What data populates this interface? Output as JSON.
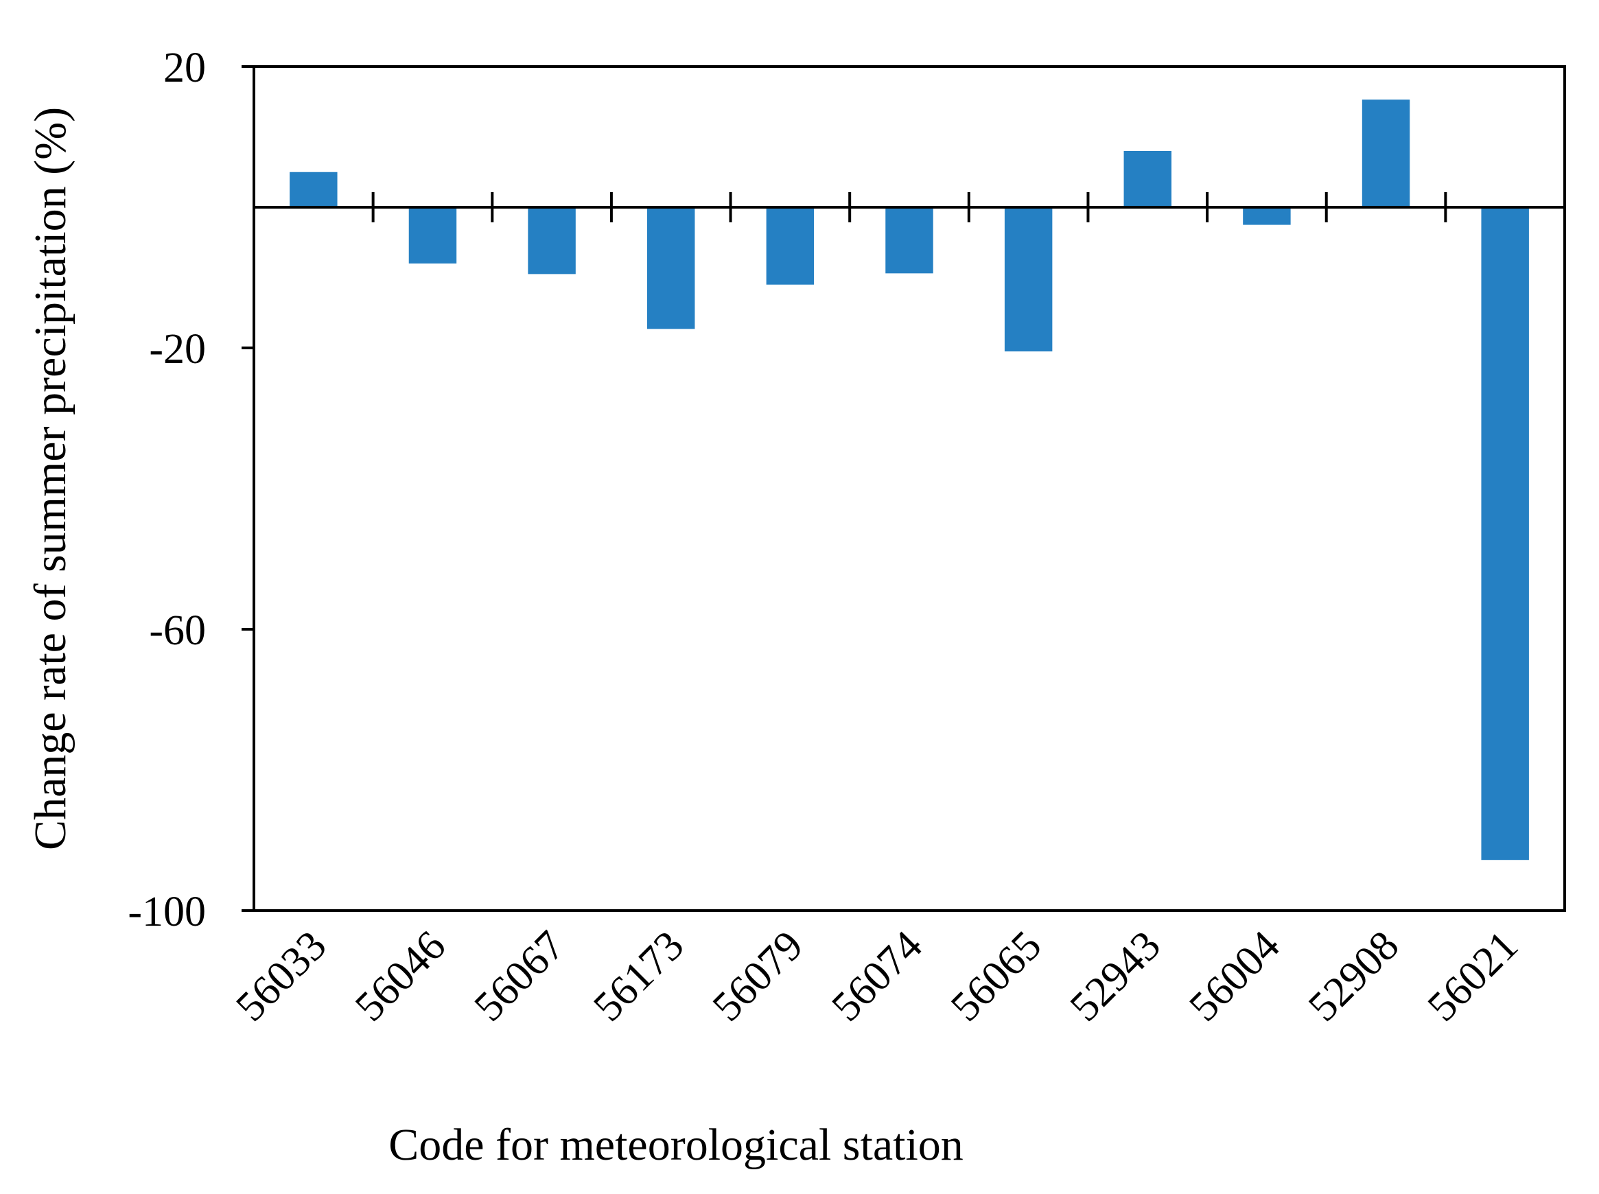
{
  "chart_data": {
    "type": "bar",
    "title": "",
    "xlabel": "Code for meteorological station",
    "ylabel": "Change rate of summer precipitation (%)",
    "categories": [
      "56033",
      "56046",
      "56067",
      "56173",
      "56079",
      "56074",
      "56065",
      "52943",
      "56004",
      "52908",
      "56021"
    ],
    "values": [
      5,
      -8,
      -9.5,
      -17.3,
      -11,
      -9.4,
      -20.5,
      8,
      -2.5,
      15.3,
      -92.8
    ],
    "ylim": [
      -100,
      20
    ],
    "yticks": [
      20,
      -20,
      -60,
      -100
    ],
    "ytick_labels": [
      "20",
      "-20",
      "-60",
      "-100"
    ],
    "zero_line": true,
    "grid": false,
    "legend": "none",
    "bar_color": "#2580c3"
  }
}
